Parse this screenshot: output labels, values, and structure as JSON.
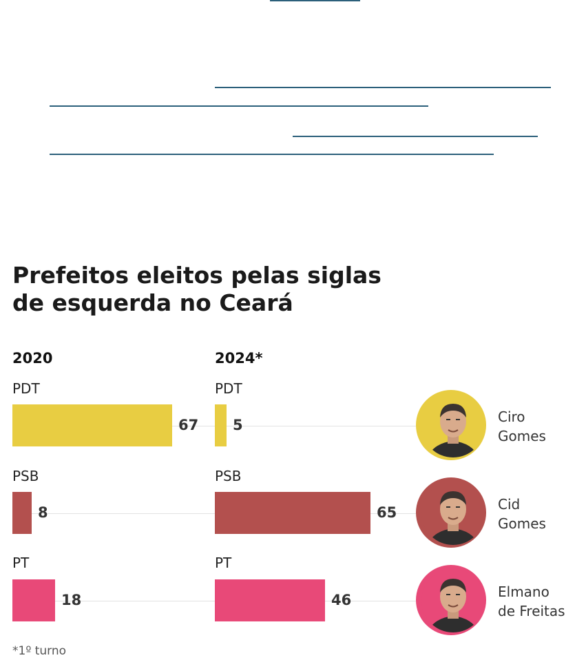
{
  "chart_data": {
    "type": "bar",
    "orientation": "horizontal",
    "title_lines": [
      "Prefeitos eleitos pelas siglas",
      "de esquerda no Ceará"
    ],
    "categories": [
      "PDT",
      "PSB",
      "PT"
    ],
    "series": [
      {
        "name": "2020",
        "values": [
          67,
          8,
          18
        ]
      },
      {
        "name": "2024*",
        "values": [
          5,
          65,
          46
        ]
      }
    ],
    "colors": [
      "#e8cd42",
      "#b3504e",
      "#e84978"
    ],
    "leaders": [
      {
        "name_lines": [
          "Ciro",
          "Gomes"
        ],
        "ring_color": "#e8cd42",
        "icon": "person-portrait"
      },
      {
        "name_lines": [
          "Cid",
          "Gomes"
        ],
        "ring_color": "#b3504e",
        "icon": "person-portrait"
      },
      {
        "name_lines": [
          "Elmano",
          "de Freitas"
        ],
        "ring_color": "#e84978",
        "icon": "person-portrait"
      }
    ],
    "footnote": "*1º turno"
  }
}
